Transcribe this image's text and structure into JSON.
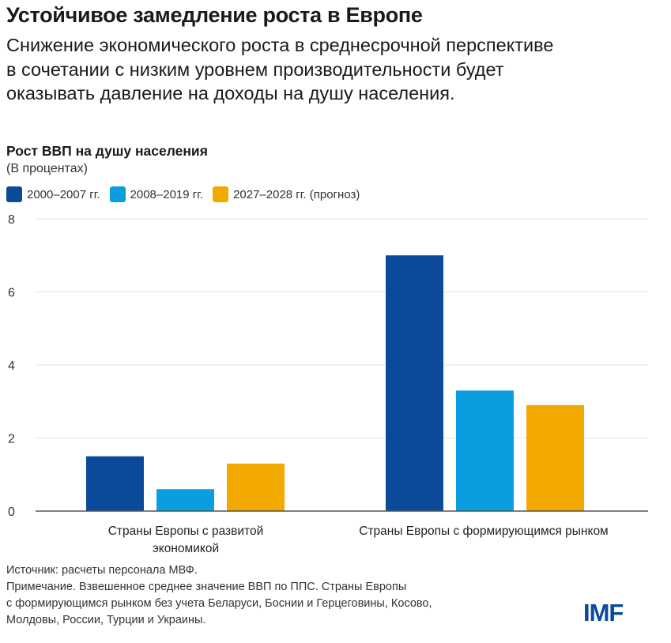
{
  "header": {
    "title": "Устойчивое замедление роста в Европе",
    "subtitle": "Снижение экономического роста в среднесрочной перспективе в сочетании с низким уровнем производительности будет оказывать давление на доходы на душу населения."
  },
  "chart_data": {
    "type": "bar",
    "title": "Рост ВВП на душу населения",
    "ylabel": "(В процентах)",
    "categories": [
      "Страны Европы с развитой экономикой",
      "Страны Европы с формирующимся рынком"
    ],
    "series": [
      {
        "name": "2000–2007 гг.",
        "color": "#0b4a99",
        "values": [
          1.5,
          7.0
        ]
      },
      {
        "name": "2008–2019 гг.",
        "color": "#0a9ee0",
        "values": [
          0.6,
          3.3
        ]
      },
      {
        "name": "2027–2028 гг. (прогноз)",
        "color": "#f2a900",
        "values": [
          1.3,
          2.9
        ]
      }
    ],
    "ylim": [
      0,
      8
    ],
    "yticks": [
      0,
      2,
      4,
      6,
      8
    ],
    "grid": true,
    "legend": "top-left"
  },
  "footer": {
    "notes": [
      "Источник: расчеты персонала МВФ.",
      "Примечание. Взвешенное среднее значение ВВП по ППС. Страны Европы",
      "с формирующимся рынком без учета Беларуси, Боснии и Герцеговины, Косово,",
      "Молдовы, России, Турции и Украины."
    ],
    "logo": "IMF"
  }
}
